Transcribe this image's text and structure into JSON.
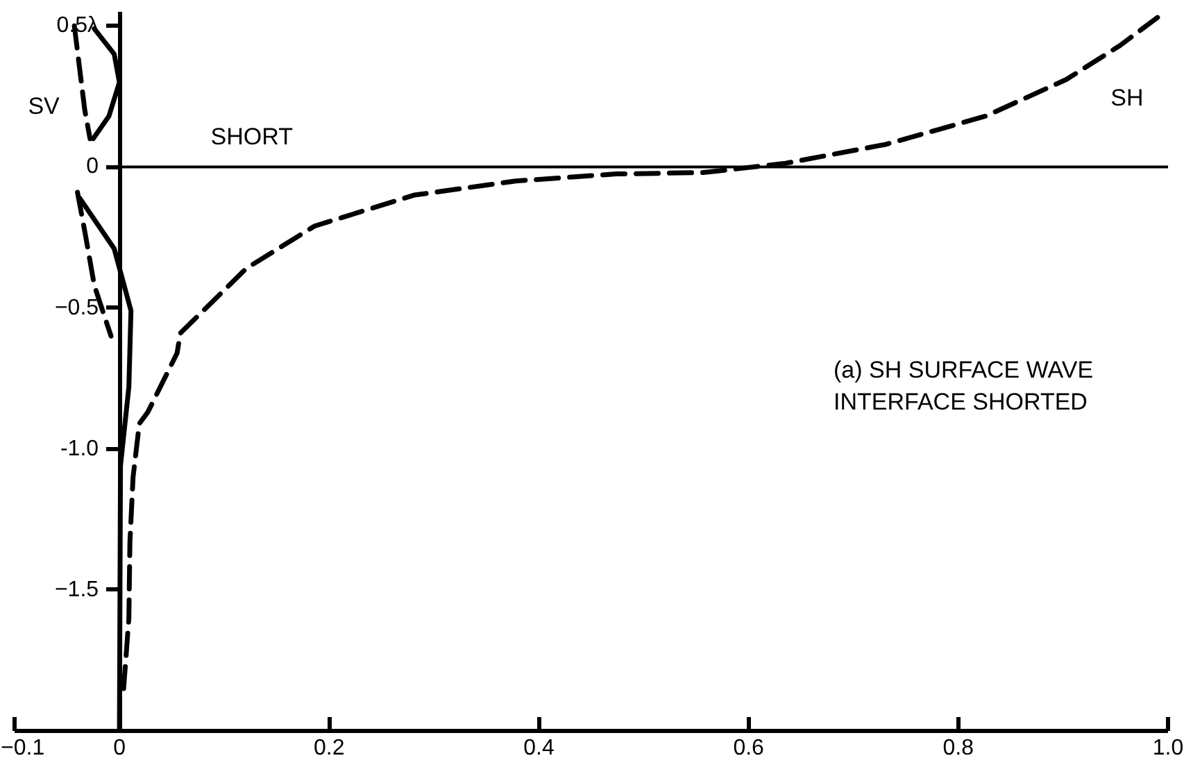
{
  "chart_data": {
    "type": "line",
    "xlim": [
      -0.1,
      1.0
    ],
    "ylim": [
      -2.0,
      0.55
    ],
    "xticks": [
      -0.1,
      0,
      0.2,
      0.4,
      0.6,
      0.8,
      {
        "value": 1.0,
        "label": "1.0"
      }
    ],
    "yticks": [
      {
        "value": 0.5,
        "label": "0.5λ"
      },
      0,
      -0.5,
      {
        "value": -1.0,
        "label": "-1.0"
      },
      -1.5
    ],
    "grid": false,
    "marker": "none",
    "ref_lines": [
      {
        "axis": "y",
        "value": 0,
        "label": "SHORT",
        "color": "#000000"
      }
    ],
    "series": [
      {
        "name": "SH",
        "color": "#000000",
        "line_style": "dashed",
        "x": [
          0.004,
          0.009,
          0.01,
          0.013,
          0.019,
          0.027,
          0.055,
          0.058,
          0.121,
          0.186,
          0.281,
          0.378,
          0.474,
          0.557,
          0.634,
          0.731,
          0.826,
          0.903,
          0.954,
          0.99
        ],
        "values": [
          -1.85,
          -1.6,
          -1.33,
          -1.1,
          -0.91,
          -0.87,
          -0.66,
          -0.59,
          -0.36,
          -0.21,
          -0.1,
          -0.05,
          -0.025,
          -0.02,
          0.012,
          0.08,
          0.18,
          0.31,
          0.43,
          0.53
        ]
      },
      {
        "name": "SV",
        "color": "#000000",
        "line_style": "dashed",
        "x": [
          -0.043,
          -0.038,
          -0.033,
          -0.028,
          null,
          -0.04,
          -0.032,
          -0.024,
          -0.008
        ],
        "values": [
          0.5,
          0.35,
          0.2,
          0.1,
          null,
          -0.09,
          -0.25,
          -0.42,
          -0.6
        ]
      },
      {
        "color": "#000000",
        "line_style": "solid",
        "x": [
          -0.024,
          -0.005,
          0.0,
          -0.01,
          -0.025,
          null,
          -0.038,
          -0.005,
          0.011,
          0.009,
          0.001,
          0.0
        ],
        "values": [
          0.49,
          0.4,
          0.3,
          0.18,
          0.1,
          null,
          -0.11,
          -0.29,
          -0.51,
          -0.78,
          -1.06,
          -2.0
        ]
      }
    ],
    "annotations": [
      "(a) SH SURFACE WAVE\n     INTERFACE SHORTED"
    ]
  }
}
